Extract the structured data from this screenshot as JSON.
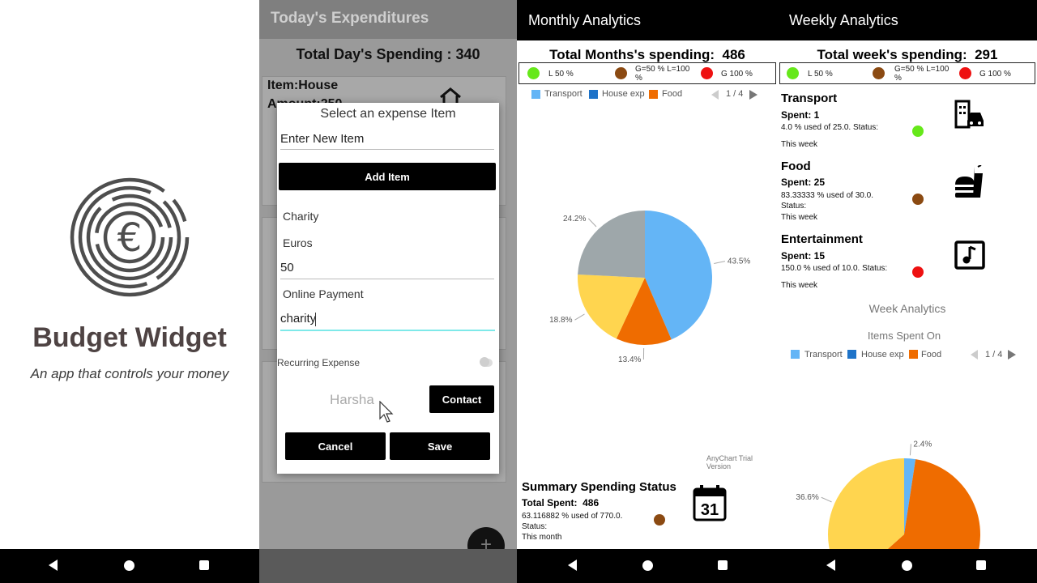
{
  "colors": {
    "green": "#66e81a",
    "brown": "#8b4a12",
    "red": "#ee1111",
    "transport": "#64b5f6",
    "house_exp": "#1e73c8",
    "food": "#ef6c00",
    "yellow": "#ffd54f",
    "gray": "#9ea7aa"
  },
  "splash": {
    "title": "Budget Widget",
    "subtitle": "An app that controls your money",
    "logo_icon": "euro-maze-icon"
  },
  "expenditures": {
    "title": "Today's Expenditures",
    "total": "Total Day's Spending : 340",
    "card1": {
      "item": "Item:House",
      "amount": "Amount:250"
    },
    "dialog": {
      "title": "Select an expense Item",
      "new_item_placeholder": "Enter New Item",
      "add_item": "Add Item",
      "category": "Charity",
      "currency": "Euros",
      "amount": "50",
      "payment": "Online Payment",
      "description": "charity",
      "recurring": "Recurring Expense",
      "contact_name": "Harsha",
      "contact_button": "Contact",
      "cancel": "Cancel",
      "save": "Save"
    },
    "fab": "+"
  },
  "monthly": {
    "title": "Monthly Analytics",
    "total_label": "Total Months's spending:",
    "total_value": "486",
    "legend": {
      "l": "L 50 %",
      "g_l": "G=50 % L=100 %",
      "g": "G 100 %"
    },
    "pager": "1 / 4",
    "watermark": "AnyChart Trial Version",
    "summary": {
      "title": "Summary Spending Status",
      "spent_label": "Total Spent:",
      "spent_value": "486",
      "used": "63.116882 % used of 770.0.",
      "status": "Status:",
      "period": "This month",
      "calendar_day": "31"
    }
  },
  "weekly": {
    "title": "Weekly Analytics",
    "total_label": "Total week's spending:",
    "total_value": "291",
    "legend": {
      "l": "L 50 %",
      "g_l": "G=50 % L=100 %",
      "g": "G 100 %"
    },
    "categories": [
      {
        "name": "Transport",
        "spent": "Spent: 1",
        "used": "4.0 % used of 25.0. Status:",
        "period": "This week",
        "icon": "building-car-icon"
      },
      {
        "name": "Food",
        "spent": "Spent: 25",
        "used": "83.33333 % used of 30.0.",
        "status": "Status:",
        "period": "This week",
        "icon": "fastfood-icon"
      },
      {
        "name": "Entertainment",
        "spent": "Spent: 15",
        "used": "150.0 % used of 10.0. Status:",
        "period": "This week",
        "icon": "music-note-icon"
      }
    ],
    "chart_heading": "Week Analytics",
    "chart_subheading": "Items Spent On",
    "pager": "1 / 4"
  },
  "chart_data": [
    {
      "type": "pie",
      "title": "",
      "legend": [
        "Transport",
        "House exp",
        "Food"
      ],
      "slices": [
        {
          "label": "43.5%",
          "value": 43.5,
          "color": "#64b5f6"
        },
        {
          "label": "13.4%",
          "value": 13.4,
          "color": "#ef6c00"
        },
        {
          "label": "18.8%",
          "value": 18.8,
          "color": "#ffd54f"
        },
        {
          "label": "24.2%",
          "value": 24.2,
          "color": "#9ea7aa"
        }
      ]
    },
    {
      "type": "pie",
      "title": "Items Spent On",
      "legend": [
        "Transport",
        "House exp",
        "Food"
      ],
      "slices": [
        {
          "label": "2.4%",
          "value": 2.4,
          "color": "#64b5f6"
        },
        {
          "label": "",
          "value": 61.0,
          "color": "#ef6c00"
        },
        {
          "label": "36.6%",
          "value": 36.6,
          "color": "#ffd54f"
        }
      ]
    }
  ]
}
